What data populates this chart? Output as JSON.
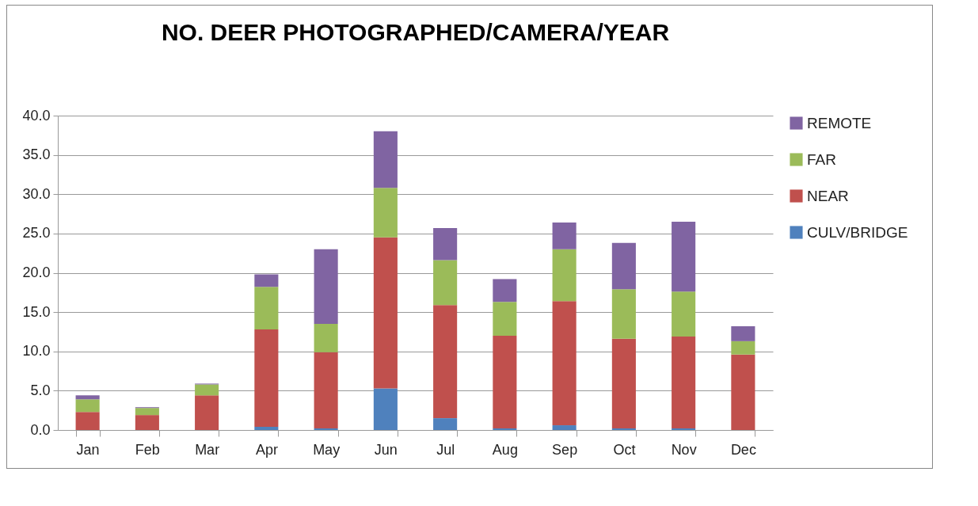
{
  "chart_data": {
    "type": "bar",
    "title": "NO. DEER PHOTOGRAPHED/CAMERA/YEAR",
    "stacked": true,
    "categories": [
      "Jan",
      "Feb",
      "Mar",
      "Apr",
      "May",
      "Jun",
      "Jul",
      "Aug",
      "Sep",
      "Oct",
      "Nov",
      "Dec"
    ],
    "series": [
      {
        "name": "CULV/BRIDGE",
        "color": "#4f81bd",
        "values": [
          0,
          0,
          0,
          0.4,
          0.2,
          5.3,
          1.5,
          0.2,
          0.6,
          0.2,
          0.2,
          0
        ]
      },
      {
        "name": "NEAR",
        "color": "#c0504d",
        "values": [
          2.3,
          1.9,
          4.4,
          12.4,
          9.7,
          19.2,
          14.4,
          11.8,
          15.8,
          11.4,
          11.7,
          9.6
        ]
      },
      {
        "name": "FAR",
        "color": "#9bbb59",
        "values": [
          1.6,
          0.9,
          1.4,
          5.4,
          3.6,
          6.3,
          5.7,
          4.3,
          6.6,
          6.3,
          5.7,
          1.7
        ]
      },
      {
        "name": "REMOTE",
        "color": "#8064a2",
        "values": [
          0.5,
          0.1,
          0.1,
          1.6,
          9.5,
          7.2,
          4.1,
          2.9,
          3.4,
          5.9,
          8.9,
          1.9
        ]
      }
    ],
    "ylim": [
      0,
      40
    ],
    "yticks": [
      {
        "value": 0,
        "label": "0.0"
      },
      {
        "value": 5,
        "label": "5.0"
      },
      {
        "value": 10,
        "label": "10.0"
      },
      {
        "value": 15,
        "label": "15.0"
      },
      {
        "value": 20,
        "label": "20.0"
      },
      {
        "value": 25,
        "label": "25.0"
      },
      {
        "value": 30,
        "label": "30.0"
      },
      {
        "value": 35,
        "label": "35.0"
      },
      {
        "value": 40,
        "label": "40.0"
      }
    ],
    "grid": "y",
    "legend": "right"
  }
}
